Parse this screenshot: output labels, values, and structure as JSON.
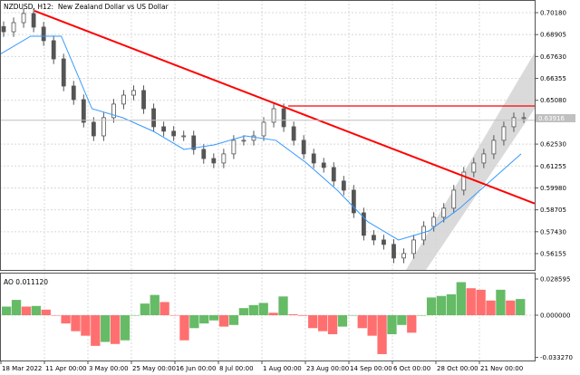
{
  "header": {
    "symbol": "NZDUSD, H12:",
    "description": "New Zealand Dollar vs US Dollar"
  },
  "colors": {
    "candles": "#555555",
    "ma": "#3399ff",
    "trendline": "#ff0000",
    "channel": "#d3d3d3",
    "ao_up": "#66bb66",
    "ao_down": "#ff6f6f",
    "grid": "#d8d8d8"
  },
  "chart_data": [
    {
      "type": "candlestick",
      "symbol": "NZDUSD",
      "timeframe": "H12",
      "ylim": [
        0.5555,
        0.7075
      ],
      "y_ticks": [
        "0.70180",
        "0.68905",
        "0.67630",
        "0.66355",
        "0.65080",
        "0.62530",
        "0.61255",
        "0.59980",
        "0.58705",
        "0.57430",
        "0.56155"
      ],
      "current_price": "0.63916",
      "x_ticks": [
        "18 Mar 2022",
        "11 Apr 00:00",
        "3 May 00:00",
        "25 May 00:00",
        "16 Jun 00:00",
        "8 Jul 00:00",
        "1 Aug 00:00",
        "23 Aug 00:00",
        "14 Sep 00:00",
        "6 Oct 00:00",
        "28 Oct 00:00",
        "21 Nov 00:00"
      ],
      "grid": true,
      "close": [
        0.6907,
        0.696,
        0.7013,
        0.6934,
        0.6855,
        0.6749,
        0.6591,
        0.6512,
        0.638,
        0.6301,
        0.6407,
        0.6486,
        0.6538,
        0.6565,
        0.6459,
        0.6354,
        0.6328,
        0.6301,
        0.6301,
        0.6222,
        0.6169,
        0.6143,
        0.6196,
        0.6275,
        0.6275,
        0.6301,
        0.638,
        0.6459,
        0.6354,
        0.6275,
        0.6196,
        0.6143,
        0.6117,
        0.6038,
        0.5985,
        0.5853,
        0.5722,
        0.5695,
        0.5669,
        0.559,
        0.5616,
        0.5695,
        0.5774,
        0.5827,
        0.588,
        0.5985,
        0.609,
        0.6143,
        0.6196,
        0.6275,
        0.6354,
        0.6407,
        0.6407
      ],
      "moving_average": [
        0.6776,
        0.6881,
        0.6881,
        0.6459,
        0.6407,
        0.6328,
        0.6222,
        0.6249,
        0.6301,
        0.6275,
        0.6143,
        0.5985,
        0.5801,
        0.5695,
        0.5748,
        0.588,
        0.6038,
        0.6196
      ],
      "trendline": {
        "from": 0.7029,
        "to": 0.5907
      },
      "horizontal_line": 0.6475
    },
    {
      "type": "bar",
      "name": "AO",
      "label": "AO 0.011120",
      "ylim": [
        -0.03327,
        0.028595
      ],
      "y_ticks": [
        "0.028595",
        "0.000000",
        "-0.033270"
      ],
      "values": [
        0.0068,
        0.0121,
        0.0068,
        0.0073,
        0.0044,
        0,
        -0.0065,
        -0.0126,
        -0.0162,
        -0.0242,
        -0.0211,
        -0.0227,
        -0.0198,
        0,
        0.0092,
        0.016,
        0.0104,
        0,
        -0.0198,
        -0.0102,
        -0.0065,
        -0.0041,
        -0.009,
        -0.0077,
        0.0056,
        0.008,
        0.0097,
        0.0019,
        0.0148,
        0.0007,
        -0.0005,
        -0.0102,
        -0.0126,
        -0.015,
        -0.009,
        0,
        -0.0102,
        -0.0162,
        -0.0307,
        -0.015,
        -0.0077,
        -0.0138,
        0,
        0.014,
        0.0152,
        0.0165,
        0.0261,
        0.0213,
        0.0201,
        0.0116,
        0.0201,
        0.0116,
        0.0128
      ]
    }
  ]
}
